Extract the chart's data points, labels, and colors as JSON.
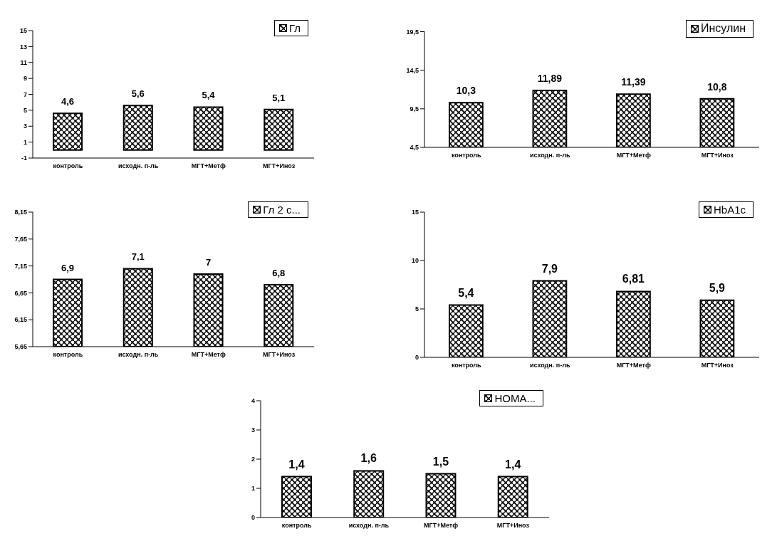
{
  "chart_data": [
    {
      "type": "bar",
      "categories": [
        "контроль",
        "исходн. п-ль",
        "МГТ+Метф",
        "МГТ+Иноз"
      ],
      "series": [
        {
          "name": "Гл",
          "color": "#000000",
          "values": [
            4.6,
            5.6,
            5.4,
            5.1
          ],
          "value_labels": [
            "4,6",
            "5,6",
            "5,4",
            "5,1"
          ]
        }
      ],
      "ylim": [
        -1,
        15
      ],
      "yticks": [
        -1,
        1,
        3,
        5,
        7,
        9,
        11,
        13,
        15
      ],
      "legend": "top right",
      "grid": false
    },
    {
      "type": "bar",
      "categories": [
        "контроль",
        "исходн. п-ль",
        "МГТ+Метф",
        "МГТ+Иноз"
      ],
      "series": [
        {
          "name": "Инсулин",
          "color": "#000000",
          "values": [
            10.3,
            11.89,
            11.39,
            10.8
          ],
          "value_labels": [
            "10,3",
            "11,89",
            "11,39",
            "10,8"
          ]
        }
      ],
      "ylim": [
        4.5,
        19.5
      ],
      "yticks": [
        {
          "value": 4.5,
          "label": "4,5"
        },
        {
          "value": 9.5,
          "label": "9,5"
        },
        {
          "value": 14.5,
          "label": "14,5"
        },
        {
          "value": 19.5,
          "label": "19,5"
        }
      ],
      "legend": "top right",
      "grid": false
    },
    {
      "type": "bar",
      "categories": [
        "контроль",
        "исходн. п-ль",
        "МГТ+Метф",
        "МГТ+Иноз"
      ],
      "series": [
        {
          "name": "Гл 2 с...",
          "color": "#000000",
          "values": [
            6.9,
            7.1,
            7,
            6.8
          ],
          "value_labels": [
            "6,9",
            "7,1",
            "7",
            "6,8"
          ]
        }
      ],
      "ylim": [
        5.65,
        8.15
      ],
      "yticks": [
        {
          "value": 5.65,
          "label": "5,65"
        },
        {
          "value": 6.15,
          "label": "6,15"
        },
        {
          "value": 6.65,
          "label": "6,65"
        },
        {
          "value": 7.15,
          "label": "7,15"
        },
        {
          "value": 7.65,
          "label": "7,65"
        },
        {
          "value": 8.15,
          "label": "8,15"
        }
      ],
      "legend": "top right",
      "grid": false
    },
    {
      "type": "bar",
      "categories": [
        "контроль",
        "исходн. п-ль",
        "МГТ+Метф",
        "МГТ+Иноз"
      ],
      "series": [
        {
          "name": "HbA1c",
          "color": "#000000",
          "values": [
            5.4,
            7.9,
            6.81,
            5.9
          ],
          "value_labels": [
            "5,4",
            "7,9",
            "6,81",
            "5,9"
          ]
        }
      ],
      "ylim": [
        0,
        15
      ],
      "yticks": [
        0,
        5,
        10,
        15
      ],
      "legend": "top right",
      "grid": false
    },
    {
      "type": "bar",
      "categories": [
        "контроль",
        "исходн. п-ль",
        "МГТ+Метф",
        "МГТ+Иноз"
      ],
      "series": [
        {
          "name": "HOMA...",
          "color": "#000000",
          "values": [
            1.4,
            1.6,
            1.5,
            1.4
          ],
          "value_labels": [
            "1,4",
            "1,6",
            "1,5",
            "1,4"
          ]
        }
      ],
      "ylim": [
        0,
        4
      ],
      "yticks": [
        0,
        1,
        2,
        3,
        4
      ],
      "legend": "top right",
      "grid": false
    }
  ]
}
